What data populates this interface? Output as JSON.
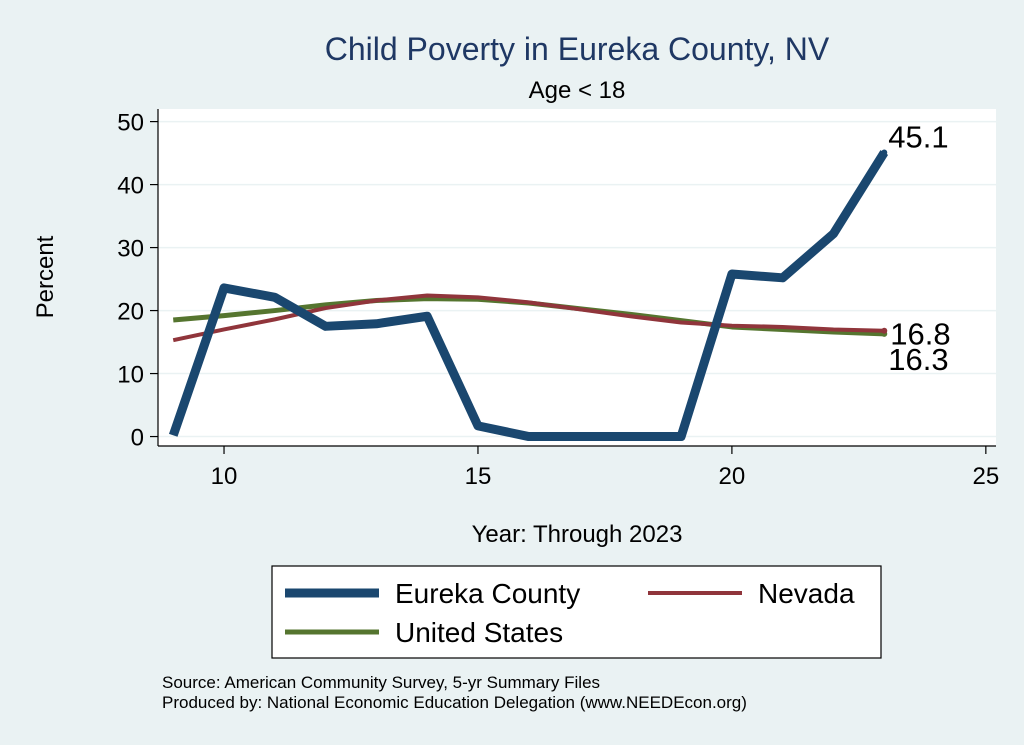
{
  "chart_data": {
    "type": "line",
    "title": "Child Poverty in Eureka County, NV",
    "subtitle": "Age < 18",
    "xlabel": "Year: Through 2023",
    "ylabel": "Percent",
    "xlim": [
      8.7,
      25.2
    ],
    "ylim": [
      -1.5,
      52
    ],
    "xticks": [
      10,
      15,
      20,
      25
    ],
    "yticks": [
      0,
      10,
      20,
      30,
      40,
      50
    ],
    "grid": true,
    "legend_position": "bottom",
    "x": [
      9,
      10,
      11,
      12,
      13,
      14,
      15,
      16,
      17,
      18,
      19,
      20,
      21,
      22,
      23
    ],
    "series": [
      {
        "name": "Eureka County",
        "color": "#1a476f",
        "values": [
          0.2,
          23.6,
          22.1,
          17.5,
          17.9,
          19.1,
          1.7,
          0.0,
          0.0,
          0.0,
          0.0,
          25.8,
          25.2,
          32.2,
          45.1
        ],
        "end_label": "45.1"
      },
      {
        "name": "Nevada",
        "color": "#90353b",
        "values": [
          15.3,
          17.0,
          18.6,
          20.4,
          21.6,
          22.4,
          22.1,
          21.3,
          20.2,
          19.1,
          18.1,
          17.6,
          17.4,
          17.0,
          16.8
        ],
        "end_label": "16.8"
      },
      {
        "name": "United States",
        "color": "#55752f",
        "values": [
          18.5,
          19.2,
          20.0,
          20.9,
          21.6,
          21.9,
          21.8,
          21.2,
          20.3,
          19.4,
          18.4,
          17.4,
          17.0,
          16.6,
          16.3
        ],
        "end_label": "16.3"
      }
    ]
  },
  "notes": {
    "source": "Source: American Community Survey, 5-yr Summary Files",
    "produced": "Produced by: National Economic Education Delegation (www.NEEDEcon.org)"
  }
}
